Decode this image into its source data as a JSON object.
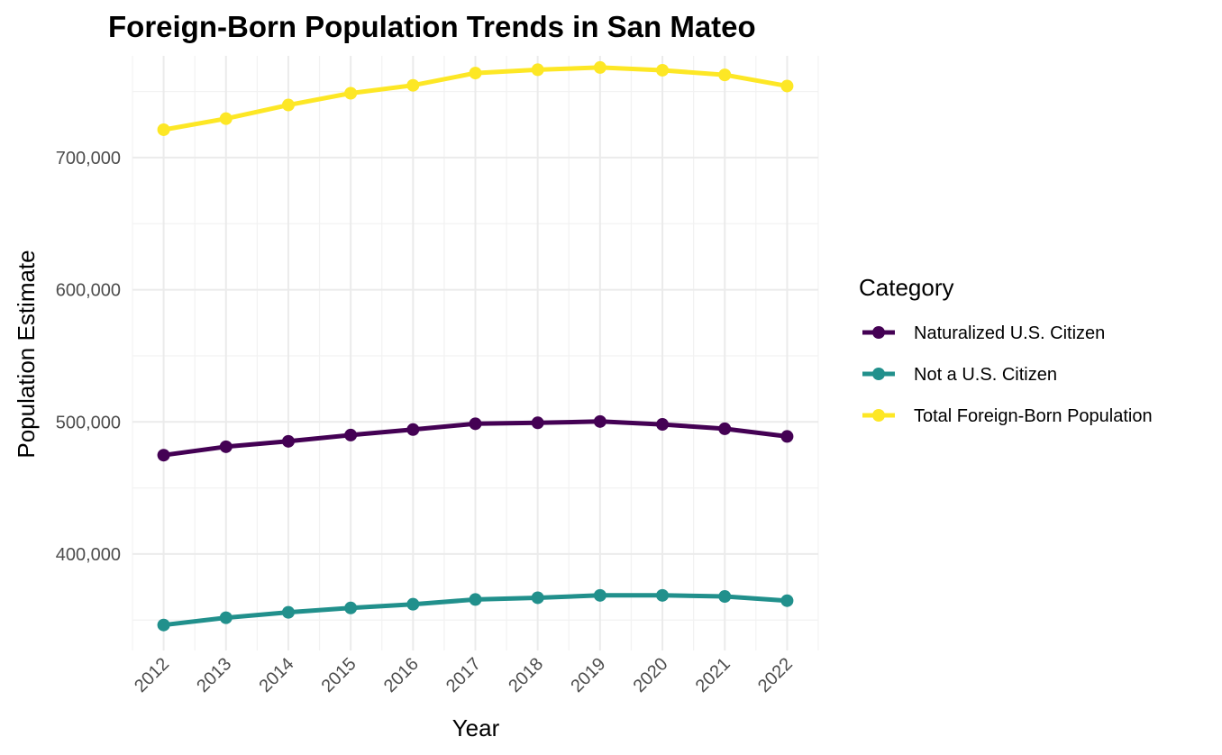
{
  "chart_data": {
    "type": "line",
    "title": "Foreign-Born Population Trends in San Mateo",
    "xlabel": "Year",
    "ylabel": "Population Estimate",
    "x": [
      2012,
      2013,
      2014,
      2015,
      2016,
      2017,
      2018,
      2019,
      2020,
      2021,
      2022
    ],
    "ylim": [
      327000,
      777000
    ],
    "y_ticks": [
      400000,
      500000,
      600000,
      700000
    ],
    "y_tick_labels": [
      "400,000",
      "500,000",
      "600,000",
      "700,000"
    ],
    "grid": true,
    "legend": {
      "title": "Category",
      "position": "right"
    },
    "series": [
      {
        "name": "Naturalized U.S. Citizen",
        "color": "#440154",
        "values": [
          474800,
          481200,
          485300,
          490000,
          494200,
          498600,
          499300,
          500300,
          498100,
          494800,
          489000
        ]
      },
      {
        "name": "Not a U.S. Citizen",
        "color": "#21908C",
        "values": [
          346300,
          351800,
          355900,
          359200,
          362000,
          365600,
          366900,
          368700,
          368700,
          367900,
          364700
        ]
      },
      {
        "name": "Total Foreign-Born Population",
        "color": "#FDE725",
        "values": [
          721100,
          729500,
          739800,
          748700,
          754700,
          764000,
          766500,
          768200,
          766100,
          762600,
          754200
        ]
      }
    ]
  }
}
